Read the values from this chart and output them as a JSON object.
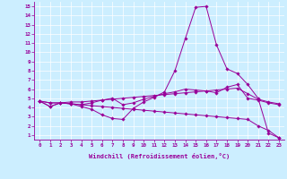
{
  "xlabel": "Windchill (Refroidissement éolien,°C)",
  "background_color": "#cceeff",
  "line_color": "#990099",
  "xlim": [
    -0.5,
    23.5
  ],
  "ylim": [
    0.5,
    15.5
  ],
  "xticks": [
    0,
    1,
    2,
    3,
    4,
    5,
    6,
    7,
    8,
    9,
    10,
    11,
    12,
    13,
    14,
    15,
    16,
    17,
    18,
    19,
    20,
    21,
    22,
    23
  ],
  "yticks": [
    1,
    2,
    3,
    4,
    5,
    6,
    7,
    8,
    9,
    10,
    11,
    12,
    13,
    14,
    15
  ],
  "series": [
    [
      4.7,
      4.1,
      4.5,
      4.4,
      4.1,
      3.8,
      3.2,
      2.8,
      2.7,
      3.9,
      4.6,
      5.1,
      5.7,
      8.0,
      11.5,
      14.9,
      15.0,
      10.8,
      8.2,
      7.7,
      6.5,
      5.0,
      1.2,
      0.7
    ],
    [
      4.7,
      4.1,
      4.5,
      4.4,
      4.3,
      4.5,
      4.8,
      5.0,
      4.3,
      4.5,
      4.9,
      5.2,
      5.5,
      5.7,
      6.0,
      5.9,
      5.8,
      5.6,
      6.2,
      6.5,
      5.0,
      4.8,
      4.5,
      4.3
    ],
    [
      4.7,
      4.5,
      4.5,
      4.4,
      4.3,
      4.2,
      4.1,
      4.0,
      3.9,
      3.8,
      3.7,
      3.6,
      3.5,
      3.4,
      3.3,
      3.2,
      3.1,
      3.0,
      2.9,
      2.8,
      2.7,
      2.0,
      1.5,
      0.7
    ],
    [
      4.7,
      4.5,
      4.5,
      4.6,
      4.6,
      4.7,
      4.8,
      4.9,
      5.0,
      5.1,
      5.2,
      5.3,
      5.4,
      5.5,
      5.6,
      5.7,
      5.8,
      5.9,
      6.0,
      6.1,
      5.5,
      4.9,
      4.6,
      4.4
    ]
  ]
}
